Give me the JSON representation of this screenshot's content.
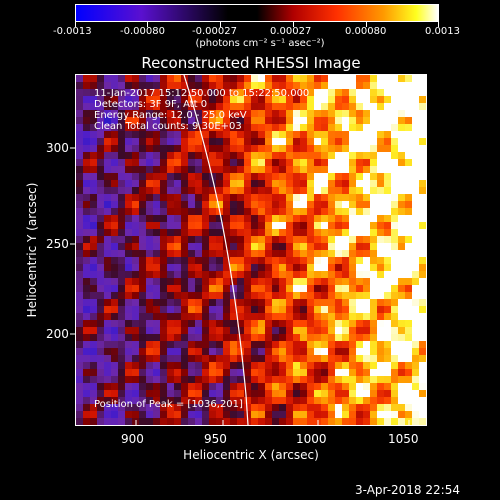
{
  "colorbar": {
    "tick_labels": [
      "-0.0013",
      "-0.00080",
      "-0.00027",
      "0.00027",
      "0.00080",
      "0.0013"
    ],
    "units": "(photons cm⁻² s⁻¹ asec⁻²)",
    "colors": [
      "#0000ff",
      "#6a00c0",
      "#000000",
      "#c00000",
      "#ff4000",
      "#ffa000",
      "#ffff00",
      "#ffffff"
    ]
  },
  "title": "Reconstructed RHESSI Image",
  "info": {
    "line1": "11-Jan-2017 15:12:50.000 to 15:22:50.000",
    "line2": "Detectors: 3F 9F, Att 0",
    "line3": "Energy Range: 12.0 - 25.0 keV",
    "line4": "Clean     Total counts: 9.30E+03",
    "peak": "Position of Peak = [1036,201]"
  },
  "axes": {
    "xlabel": "Heliocentric X (arcsec)",
    "ylabel": "Heliocentric Y (arcsec)",
    "xticks": [
      "900",
      "950",
      "1000",
      "1050"
    ],
    "yticks": [
      "300",
      "250",
      "200"
    ]
  },
  "timestamp": "3-Apr-2018 22:54"
}
